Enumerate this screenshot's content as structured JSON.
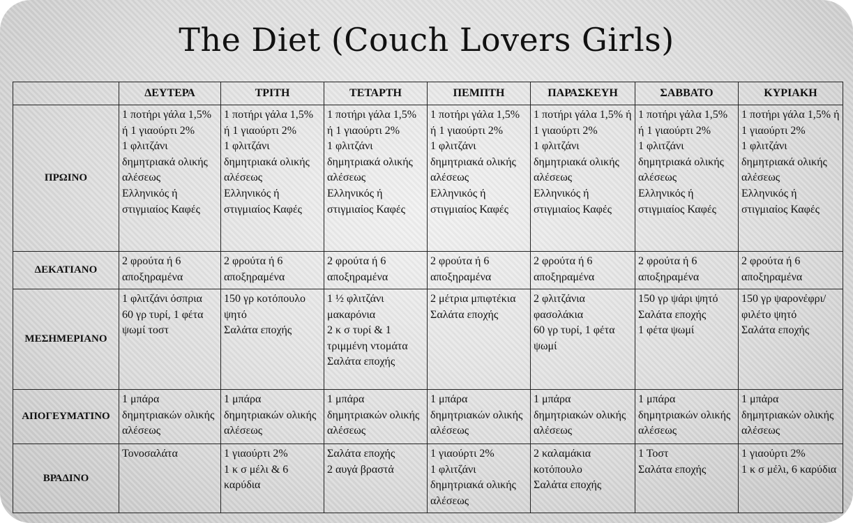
{
  "title": "The Diet (Couch Lovers Girls)",
  "table": {
    "header": [
      "ΔΕΥΤΕΡΑ",
      "ΤΡΙΤΗ",
      "ΤΕΤΑΡΤΗ",
      "ΠΕΜΠΤΗ",
      "ΠΑΡΑΣΚΕΥΗ",
      "ΣΑΒΒΑΤΟ",
      "ΚΥΡΙΑΚΗ"
    ],
    "rows": [
      {
        "label": "ΠΡΩΙΝΟ",
        "cells": [
          [
            "1 ποτήρι γάλα 1,5% ή 1 γιαούρτι 2%",
            "1 φλιτζάνι δημητριακά ολικής αλέσεως",
            "Ελληνικός ή στιγμιαίος Καφές"
          ],
          [
            "1 ποτήρι γάλα 1,5% ή 1 γιαούρτι 2%",
            "1 φλιτζάνι δημητριακά ολικής αλέσεως",
            "Ελληνικός ή στιγμιαίος Καφές"
          ],
          [
            "1 ποτήρι γάλα 1,5% ή 1 γιαούρτι 2%",
            "1 φλιτζάνι δημητριακά ολικής αλέσεως",
            "Ελληνικός ή στιγμιαίος Καφές"
          ],
          [
            "1 ποτήρι γάλα 1,5% ή 1 γιαούρτι 2%",
            "1 φλιτζάνι δημητριακά ολικής αλέσεως",
            "Ελληνικός ή στιγμιαίος Καφές"
          ],
          [
            "1 ποτήρι γάλα 1,5% ή 1 γιαούρτι 2%",
            "1 φλιτζάνι δημητριακά ολικής αλέσεως",
            "Ελληνικός ή στιγμιαίος Καφές"
          ],
          [
            "1 ποτήρι γάλα 1,5% ή 1 γιαούρτι 2%",
            "1 φλιτζάνι δημητριακά ολικής αλέσεως",
            "Ελληνικός ή στιγμιαίος Καφές"
          ],
          [
            "1 ποτήρι γάλα 1,5% ή 1 γιαούρτι 2%",
            "1 φλιτζάνι δημητριακά ολικής αλέσεως",
            "Ελληνικός ή στιγμιαίος Καφές"
          ]
        ]
      },
      {
        "label": "ΔΕΚΑΤΙΑΝΟ",
        "cells": [
          [
            "2 φρούτα ή 6 αποξηραμένα"
          ],
          [
            "2 φρούτα ή 6 αποξηραμένα"
          ],
          [
            "2 φρούτα ή 6 αποξηραμένα"
          ],
          [
            "2 φρούτα ή 6 αποξηραμένα"
          ],
          [
            "2 φρούτα ή 6 αποξηραμένα"
          ],
          [
            "2 φρούτα ή 6 αποξηραμένα"
          ],
          [
            "2 φρούτα ή 6 αποξηραμένα"
          ]
        ]
      },
      {
        "label": "ΜΕΣΗΜΕΡΙΑΝΟ",
        "cells": [
          [
            "1 φλιτζάνι όσπρια",
            "60 γρ τυρί, 1 φέτα ψωμί τοστ"
          ],
          [
            "150 γρ κοτόπουλο ψητό",
            "Σαλάτα εποχής"
          ],
          [
            "1 ½ φλιτζάνι μακαρόνια",
            "2 κ σ τυρί & 1 τριμμένη ντομάτα",
            "Σαλάτα εποχής"
          ],
          [
            "2 μέτρια μπιφτέκια",
            "Σαλάτα εποχής"
          ],
          [
            "2 φλιτζάνια φασολάκια",
            "60 γρ τυρί, 1 φέτα ψωμί"
          ],
          [
            "150 γρ ψάρι ψητό",
            "Σαλάτα εποχής",
            "1 φέτα ψωμί"
          ],
          [
            "150 γρ ψαρονέφρι/ φιλέτο ψητό",
            "Σαλάτα εποχής"
          ]
        ]
      },
      {
        "label": "ΑΠΟΓΕΥΜΑΤΙΝΟ",
        "cells": [
          [
            "1 μπάρα δημητριακών ολικής αλέσεως"
          ],
          [
            "1 μπάρα δημητριακών ολικής αλέσεως"
          ],
          [
            "1 μπάρα δημητριακών ολικής αλέσεως"
          ],
          [
            "1 μπάρα δημητριακών ολικής αλέσεως"
          ],
          [
            "1 μπάρα δημητριακών ολικής αλέσεως"
          ],
          [
            "1 μπάρα δημητριακών ολικής αλέσεως"
          ],
          [
            "1 μπάρα δημητριακών ολικής αλέσεως"
          ]
        ]
      },
      {
        "label": "ΒΡΑΔΙΝΟ",
        "cells": [
          [
            "Τονοσαλάτα"
          ],
          [
            "1 γιαούρτι 2%",
            "1 κ σ μέλι & 6 καρύδια"
          ],
          [
            "Σαλάτα εποχής",
            "2 αυγά βραστά"
          ],
          [
            "1 γιαούρτι 2%",
            "1 φλιτζάνι δημητριακά ολικής αλέσεως"
          ],
          [
            "2 καλαμάκια κοτόπουλο",
            "Σαλάτα εποχής"
          ],
          [
            "1 Τοστ",
            "Σαλάτα εποχής"
          ],
          [
            "1 γιαούρτι 2%",
            "1 κ σ μέλι, 6 καρύδια"
          ]
        ]
      }
    ]
  }
}
